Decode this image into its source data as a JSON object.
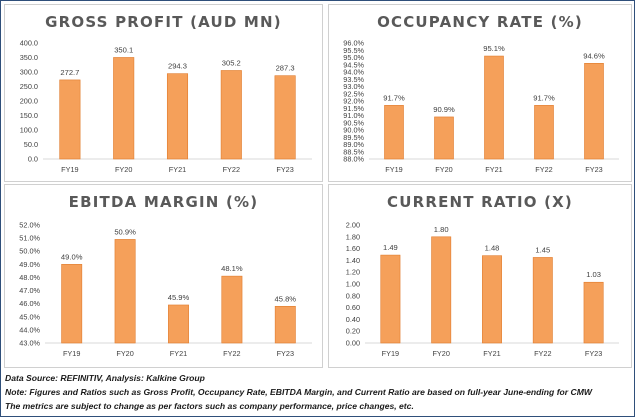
{
  "chart_data": [
    {
      "type": "bar",
      "title": "GROSS PROFIT (AUD MN)",
      "categories": [
        "FY19",
        "FY20",
        "FY21",
        "FY22",
        "FY23"
      ],
      "values": [
        272.7,
        350.1,
        294.3,
        305.2,
        287.3
      ],
      "value_labels": [
        "272.7",
        "350.1",
        "294.3",
        "305.2",
        "287.3"
      ],
      "ylim": [
        0,
        400
      ],
      "yticks": [
        "0.0",
        "50.0",
        "100.0",
        "150.0",
        "200.0",
        "250.0",
        "300.0",
        "350.0",
        "400.0"
      ],
      "grid": false,
      "bar_color": "#f5a05a"
    },
    {
      "type": "bar",
      "title": "OCCUPANCY RATE (%)",
      "categories": [
        "FY19",
        "FY20",
        "FY21",
        "FY22",
        "FY23"
      ],
      "values": [
        91.7,
        90.9,
        95.1,
        91.7,
        94.6
      ],
      "value_labels": [
        "91.7%",
        "90.9%",
        "95.1%",
        "91.7%",
        "94.6%"
      ],
      "ylim": [
        88,
        96
      ],
      "yticks": [
        "88.0%",
        "88.5%",
        "89.0%",
        "89.5%",
        "90.0%",
        "90.5%",
        "91.0%",
        "91.5%",
        "92.0%",
        "92.5%",
        "93.0%",
        "93.5%",
        "94.0%",
        "94.5%",
        "95.0%",
        "95.5%",
        "96.0%"
      ],
      "grid": false,
      "bar_color": "#f5a05a"
    },
    {
      "type": "bar",
      "title": "EBITDA MARGIN (%)",
      "categories": [
        "FY19",
        "FY20",
        "FY21",
        "FY22",
        "FY23"
      ],
      "values": [
        49.0,
        50.9,
        45.9,
        48.1,
        45.8
      ],
      "value_labels": [
        "49.0%",
        "50.9%",
        "45.9%",
        "48.1%",
        "45.8%"
      ],
      "ylim": [
        43,
        52
      ],
      "yticks": [
        "43.0%",
        "44.0%",
        "45.0%",
        "46.0%",
        "47.0%",
        "48.0%",
        "49.0%",
        "50.0%",
        "51.0%",
        "52.0%"
      ],
      "grid": false,
      "bar_color": "#f5a05a"
    },
    {
      "type": "bar",
      "title": "CURRENT RATIO (X)",
      "categories": [
        "FY19",
        "FY20",
        "FY21",
        "FY22",
        "FY23"
      ],
      "values": [
        1.49,
        1.8,
        1.48,
        1.45,
        1.03
      ],
      "value_labels": [
        "1.49",
        "1.80",
        "1.48",
        "1.45",
        "1.03"
      ],
      "ylim": [
        0,
        2
      ],
      "yticks": [
        "0.00",
        "0.20",
        "0.40",
        "0.60",
        "0.80",
        "1.00",
        "1.20",
        "1.40",
        "1.60",
        "1.80",
        "2.00"
      ],
      "grid": false,
      "bar_color": "#f5a05a"
    }
  ],
  "footer": {
    "source": "Data Source: REFINITIV, Analysis: Kalkine Group",
    "note": "Note: Figures and Ratios such as Gross Profit, Occupancy Rate, EBITDA Margin, and Current Ratio are based on full-year June-ending for CMW",
    "disclaimer": "The metrics are subject to change as per factors such as company performance, price changes, etc."
  },
  "colors": {
    "title": "#595959",
    "axis_text": "#404040",
    "bar": "#f5a05a",
    "bar_stroke": "#e07b2c"
  }
}
